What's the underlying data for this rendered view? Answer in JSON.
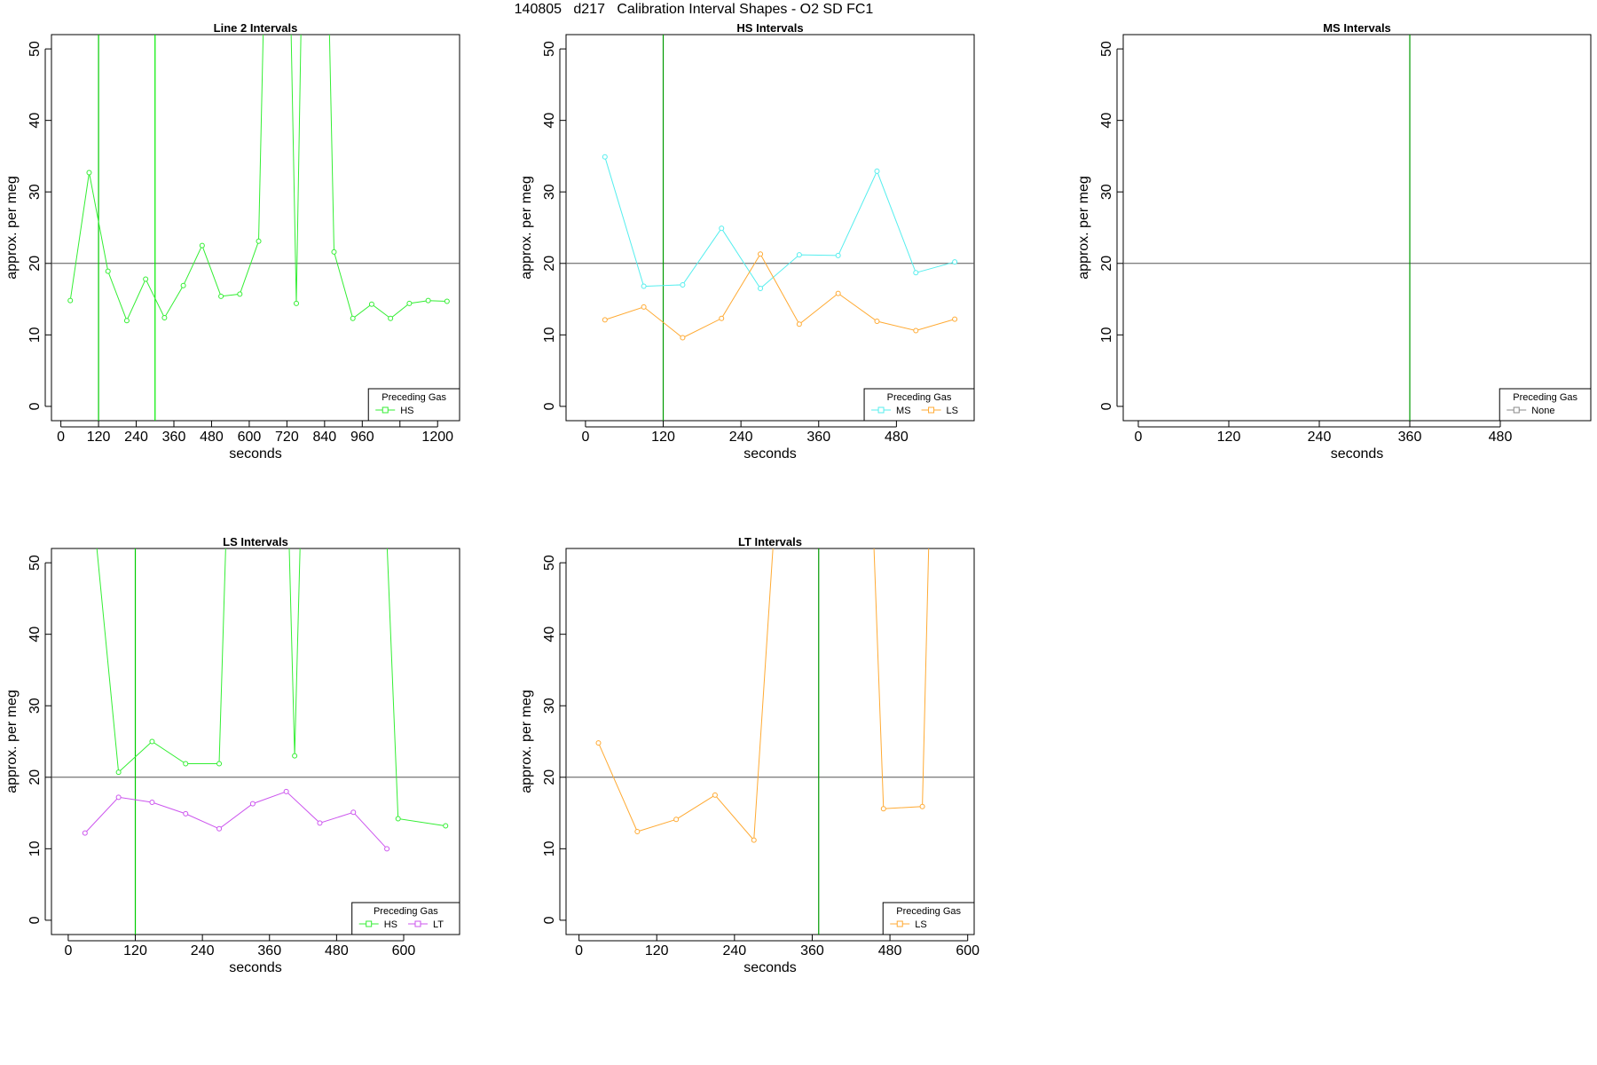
{
  "page": {
    "title": "140805   d217   Calibration Interval Shapes - O2 SD FC1"
  },
  "chart_data": [
    {
      "type": "line",
      "title": "Line 2 Intervals",
      "xlabel": "seconds",
      "ylabel": "approx. per meg",
      "xlim": [
        -30,
        1270
      ],
      "ylim": [
        -2,
        52
      ],
      "xticks": [
        0,
        120,
        240,
        360,
        480,
        600,
        720,
        840,
        960,
        1080,
        1200
      ],
      "xtick_labels": [
        "0",
        "120",
        "240",
        "360",
        "480",
        "600",
        "720",
        "840",
        "960",
        "",
        "1200"
      ],
      "yticks": [
        0,
        10,
        20,
        30,
        40,
        50
      ],
      "hline": 20,
      "vlines": [
        {
          "x": 120,
          "color": "#00cc00"
        },
        {
          "x": 300,
          "color": "#00ee00"
        }
      ],
      "legend": {
        "title": "Preceding Gas",
        "position": "bottom-right"
      },
      "series": [
        {
          "name": "HS",
          "color": "#33ee33",
          "points": [
            [
              30,
              14.8
            ],
            [
              90,
              32.7
            ],
            [
              150,
              18.9
            ],
            [
              210,
              12.0
            ],
            [
              270,
              17.8
            ],
            [
              330,
              12.4
            ],
            [
              390,
              16.9
            ],
            [
              450,
              22.5
            ],
            [
              510,
              15.4
            ],
            [
              570,
              15.7
            ],
            [
              630,
              23.1
            ],
            [
              645,
              53.0
            ],
            null,
            [
              733,
              53.0
            ],
            [
              750,
              14.4
            ],
            [
              765,
              53.0
            ],
            null,
            [
              855,
              53.0
            ],
            [
              870,
              21.6
            ],
            [
              930,
              12.3
            ],
            [
              990,
              14.3
            ],
            [
              1050,
              12.3
            ],
            [
              1110,
              14.4
            ],
            [
              1170,
              14.8
            ],
            [
              1230,
              14.7
            ]
          ]
        }
      ]
    },
    {
      "type": "line",
      "title": "HS Intervals",
      "xlabel": "seconds",
      "ylabel": "approx. per meg",
      "xlim": [
        -30,
        600
      ],
      "ylim": [
        -2,
        52
      ],
      "xticks": [
        0,
        120,
        240,
        360,
        480
      ],
      "xtick_labels": [
        "0",
        "120",
        "240",
        "360",
        "480"
      ],
      "yticks": [
        0,
        10,
        20,
        30,
        40,
        50
      ],
      "hline": 20,
      "vlines": [
        {
          "x": 120,
          "color": "#009900"
        }
      ],
      "legend": {
        "title": "Preceding Gas",
        "position": "bottom-right"
      },
      "series": [
        {
          "name": "MS",
          "color": "#55eeee",
          "points": [
            [
              30,
              34.9
            ],
            [
              90,
              16.8
            ],
            [
              150,
              17.0
            ],
            [
              210,
              24.9
            ],
            [
              270,
              16.5
            ],
            [
              330,
              21.2
            ],
            [
              390,
              21.1
            ],
            [
              450,
              32.9
            ],
            [
              510,
              18.7
            ],
            [
              570,
              20.2
            ]
          ]
        },
        {
          "name": "LS",
          "color": "#ffaa33",
          "points": [
            [
              30,
              12.1
            ],
            [
              90,
              13.9
            ],
            [
              150,
              9.6
            ],
            [
              210,
              12.3
            ],
            [
              270,
              21.3
            ],
            [
              330,
              11.5
            ],
            [
              390,
              15.8
            ],
            [
              450,
              11.9
            ],
            [
              510,
              10.6
            ],
            [
              570,
              12.2
            ]
          ]
        }
      ]
    },
    {
      "type": "line",
      "title": "MS Intervals",
      "xlabel": "seconds",
      "ylabel": "approx. per meg",
      "xlim": [
        -20,
        600
      ],
      "ylim": [
        -2,
        52
      ],
      "xticks": [
        0,
        120,
        240,
        360,
        480
      ],
      "xtick_labels": [
        "0",
        "120",
        "240",
        "360",
        "480"
      ],
      "yticks": [
        0,
        10,
        20,
        30,
        40,
        50
      ],
      "hline": 20,
      "vlines": [
        {
          "x": 360,
          "color": "#009900"
        }
      ],
      "legend": {
        "title": "Preceding Gas",
        "position": "bottom-right"
      },
      "series": [
        {
          "name": "None",
          "color": "#888888",
          "points": []
        }
      ]
    },
    {
      "type": "line",
      "title": "LS Intervals",
      "xlabel": "seconds",
      "ylabel": "approx. per meg",
      "xlim": [
        -30,
        700
      ],
      "ylim": [
        -2,
        52
      ],
      "xticks": [
        0,
        120,
        240,
        360,
        480,
        600
      ],
      "xtick_labels": [
        "0",
        "120",
        "240",
        "360",
        "480",
        "600"
      ],
      "yticks": [
        0,
        10,
        20,
        30,
        40,
        50
      ],
      "hline": 20,
      "vlines": [
        {
          "x": 120,
          "color": "#00cc00"
        }
      ],
      "legend": {
        "title": "Preceding Gas",
        "position": "bottom-right"
      },
      "series": [
        {
          "name": "HS",
          "color": "#33ee33",
          "points": [
            [
              50,
              53.0
            ],
            [
              90,
              20.7
            ],
            [
              150,
              25.0
            ],
            [
              210,
              21.9
            ],
            [
              270,
              21.9
            ],
            [
              282,
              53.0
            ],
            null,
            [
              395,
              53.0
            ],
            [
              405,
              23.0
            ],
            [
              415,
              53.0
            ],
            null,
            [
              570,
              53.0
            ],
            [
              590,
              14.2
            ],
            [
              675,
              13.2
            ]
          ]
        },
        {
          "name": "LT",
          "color": "#cc55ee",
          "points": [
            [
              30,
              12.2
            ],
            [
              90,
              17.2
            ],
            [
              150,
              16.5
            ],
            [
              210,
              14.9
            ],
            [
              270,
              12.8
            ],
            [
              330,
              16.3
            ],
            [
              390,
              18.0
            ],
            [
              450,
              13.6
            ],
            [
              510,
              15.1
            ],
            [
              570,
              10.0
            ]
          ]
        }
      ]
    },
    {
      "type": "line",
      "title": "LT Intervals",
      "xlabel": "seconds",
      "ylabel": "approx. per meg",
      "xlim": [
        -20,
        610
      ],
      "ylim": [
        -2,
        52
      ],
      "xticks": [
        0,
        120,
        240,
        360,
        480,
        600
      ],
      "xtick_labels": [
        "0",
        "120",
        "240",
        "360",
        "480",
        "600"
      ],
      "yticks": [
        0,
        10,
        20,
        30,
        40,
        50
      ],
      "hline": 20,
      "vlines": [
        {
          "x": 370,
          "color": "#009900"
        }
      ],
      "legend": {
        "title": "Preceding Gas",
        "position": "bottom-right"
      },
      "series": [
        {
          "name": "LS",
          "color": "#ffaa33",
          "points": [
            [
              30,
              24.8
            ],
            [
              90,
              12.4
            ],
            [
              150,
              14.1
            ],
            [
              210,
              17.5
            ],
            [
              270,
              11.2
            ],
            [
              300,
              53.0
            ],
            null,
            [
              455,
              53.0
            ],
            [
              470,
              15.6
            ],
            [
              530,
              15.9
            ],
            [
              540,
              53.0
            ]
          ]
        }
      ]
    }
  ]
}
